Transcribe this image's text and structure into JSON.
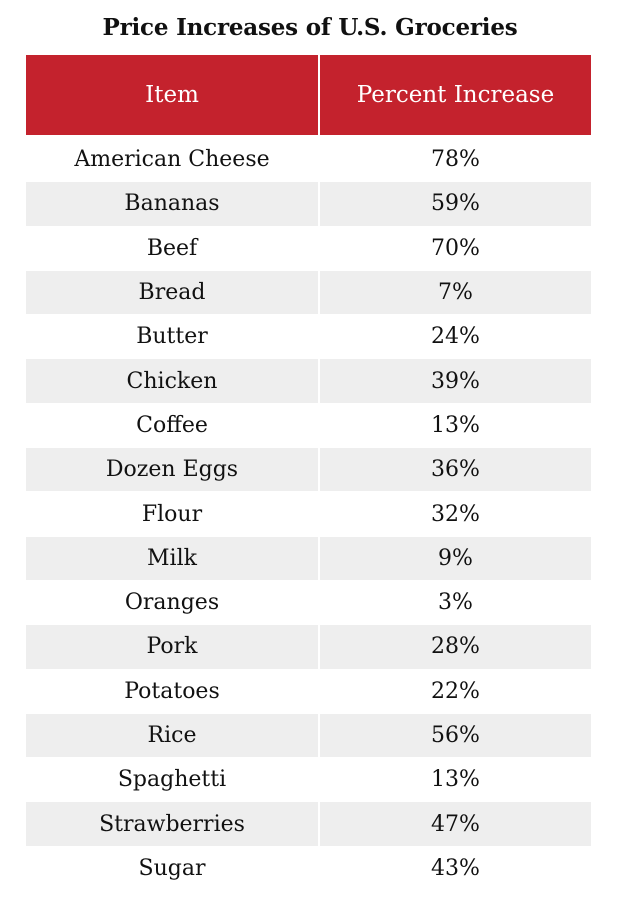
{
  "chart_data": {
    "type": "table",
    "title": "Price Increases of U.S. Groceries",
    "columns": [
      "Item",
      "Percent Increase"
    ],
    "rows": [
      {
        "item": "American Cheese",
        "value": "78%"
      },
      {
        "item": "Bananas",
        "value": "59%"
      },
      {
        "item": "Beef",
        "value": "70%"
      },
      {
        "item": "Bread",
        "value": "7%"
      },
      {
        "item": "Butter",
        "value": "24%"
      },
      {
        "item": "Chicken",
        "value": "39%"
      },
      {
        "item": "Coffee",
        "value": "13%"
      },
      {
        "item": "Dozen Eggs",
        "value": "36%"
      },
      {
        "item": "Flour",
        "value": "32%"
      },
      {
        "item": "Milk",
        "value": "9%"
      },
      {
        "item": "Oranges",
        "value": "3%"
      },
      {
        "item": "Pork",
        "value": "28%"
      },
      {
        "item": "Potatoes",
        "value": "22%"
      },
      {
        "item": "Rice",
        "value": "56%"
      },
      {
        "item": "Spaghetti",
        "value": "13%"
      },
      {
        "item": "Strawberries",
        "value": "47%"
      },
      {
        "item": "Sugar",
        "value": "43%"
      }
    ]
  },
  "colors": {
    "header_background": "#c4222d",
    "header_text": "#ffffff",
    "row_alt_background": "#eeeeee",
    "text": "#111111"
  }
}
